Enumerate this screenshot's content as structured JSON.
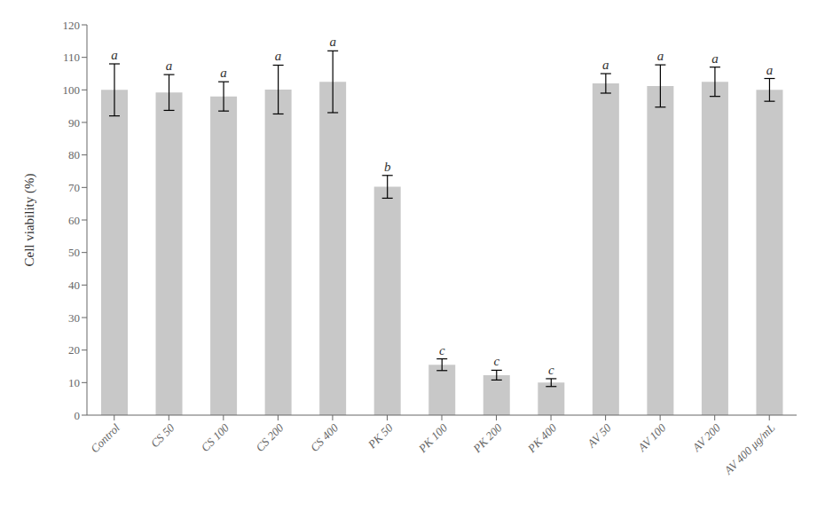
{
  "chart_data": {
    "type": "bar",
    "categories": [
      "Control",
      "CS 50",
      "CS 100",
      "CS 200",
      "CS 400",
      "PK 50",
      "PK 100",
      "PK 200",
      "PK 400",
      "AV 50",
      "AV 100",
      "AV 200",
      "AV 400 μg/mL"
    ],
    "values": [
      100.0,
      99.2,
      98.0,
      100.1,
      102.5,
      70.2,
      15.5,
      12.3,
      10.0,
      102.0,
      101.2,
      102.5,
      100.0
    ],
    "errors": [
      8.0,
      5.5,
      4.5,
      7.5,
      9.5,
      3.5,
      1.8,
      1.5,
      1.2,
      3.0,
      6.5,
      4.5,
      3.5
    ],
    "letters": [
      "a",
      "a",
      "a",
      "a",
      "a",
      "b",
      "c",
      "c",
      "c",
      "a",
      "a",
      "a",
      "a"
    ],
    "color": "#C8C8C8",
    "ylabel": "Cell viability (%)",
    "ylim": [
      0,
      120
    ],
    "yticks": [
      0,
      10,
      20,
      30,
      40,
      50,
      60,
      70,
      80,
      90,
      100,
      110,
      120
    ],
    "grid": false
  }
}
